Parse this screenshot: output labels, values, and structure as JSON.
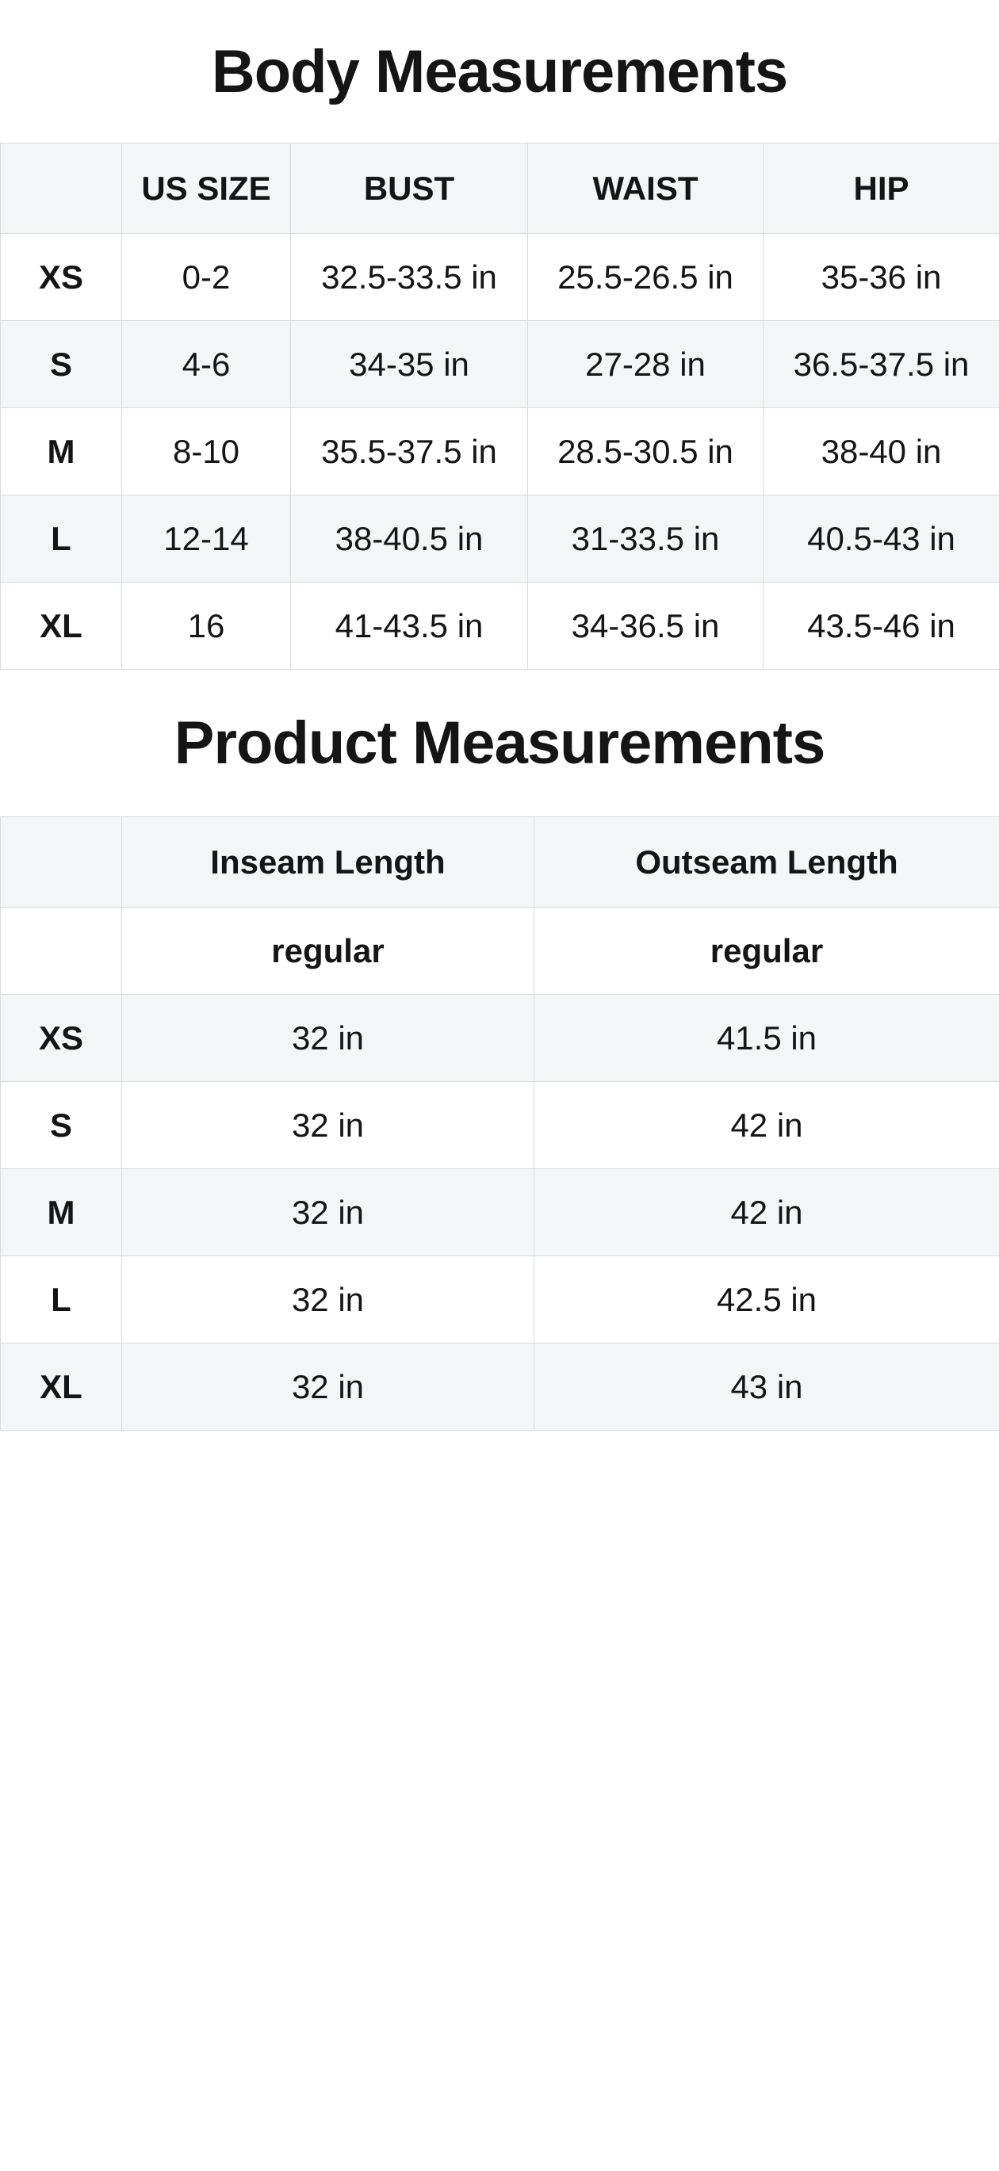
{
  "colors": {
    "row_shaded": "#f4f5f6",
    "border": "#d8dadc",
    "text": "#151515",
    "page_bg": "#ffffff"
  },
  "body_measurements": {
    "title": "Body Measurements",
    "columns": [
      "",
      "US SIZE",
      "BUST",
      "WAIST",
      "HIP"
    ],
    "rows": [
      {
        "label": "XS",
        "cells": [
          "0-2",
          "32.5-33.5 in",
          "25.5-26.5 in",
          "35-36 in"
        ]
      },
      {
        "label": "S",
        "cells": [
          "4-6",
          "34-35 in",
          "27-28 in",
          "36.5-37.5 in"
        ]
      },
      {
        "label": "M",
        "cells": [
          "8-10",
          "35.5-37.5 in",
          "28.5-30.5 in",
          "38-40 in"
        ]
      },
      {
        "label": "L",
        "cells": [
          "12-14",
          "38-40.5 in",
          "31-33.5 in",
          "40.5-43 in"
        ]
      },
      {
        "label": "XL",
        "cells": [
          "16",
          "41-43.5 in",
          "34-36.5 in",
          "43.5-46 in"
        ]
      }
    ]
  },
  "product_measurements": {
    "title": "Product Measurements",
    "columns": [
      "",
      "Inseam Length",
      "Outseam Length"
    ],
    "subheader": [
      "regular",
      "regular"
    ],
    "rows": [
      {
        "label": "XS",
        "cells": [
          "32 in",
          "41.5 in"
        ]
      },
      {
        "label": "S",
        "cells": [
          "32 in",
          "42 in"
        ]
      },
      {
        "label": "M",
        "cells": [
          "32 in",
          "42 in"
        ]
      },
      {
        "label": "L",
        "cells": [
          "32 in",
          "42.5 in"
        ]
      },
      {
        "label": "XL",
        "cells": [
          "32 in",
          "43 in"
        ]
      }
    ]
  }
}
